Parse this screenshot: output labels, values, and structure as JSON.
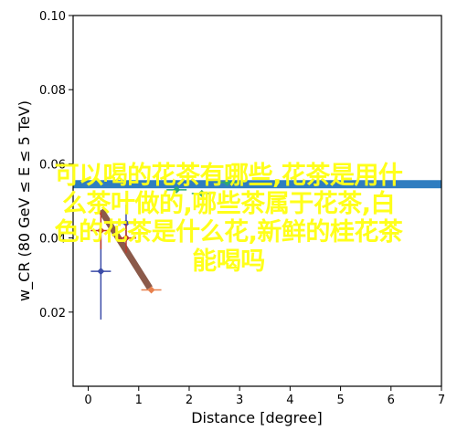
{
  "chart_data": {
    "type": "scatter",
    "title": "",
    "xlabel": "Distance [degree]",
    "ylabel": "w_CR (80 GeV ≤ E ≤ 5 TeV)",
    "xlim": [
      -0.3,
      7.0
    ],
    "ylim": [
      0.0,
      0.1
    ],
    "xticks": [
      0,
      1,
      2,
      3,
      4,
      5,
      6,
      7
    ],
    "yticks": [
      0.02,
      0.04,
      0.06,
      0.08,
      0.1
    ],
    "ytick_labels": [
      "0.02",
      "0.04",
      "0.06",
      "0.08",
      "0.10"
    ],
    "grid": false,
    "series": [
      {
        "marker": "plus",
        "color": "#3b4ca8",
        "points": [
          {
            "x": 0.25,
            "y": 0.031,
            "err": 0.013
          }
        ]
      },
      {
        "marker": "plus",
        "color": "#c0392b",
        "points": [
          {
            "x": 0.25,
            "y": 0.042,
            "err": 0.005
          }
        ]
      },
      {
        "marker": "plus",
        "color": "#3b4ca8",
        "points": [
          {
            "x": 0.75,
            "y": 0.044,
            "err": 0.005
          }
        ]
      },
      {
        "marker": "plus",
        "color": "#c0392b",
        "points": [
          {
            "x": 0.75,
            "y": 0.04,
            "err": 0.004
          }
        ]
      },
      {
        "marker": "plus",
        "color": "#e8804d",
        "points": [
          {
            "x": 1.25,
            "y": 0.026,
            "err": 0.0
          }
        ]
      },
      {
        "marker": "plus",
        "color": "#2aa876",
        "points": [
          {
            "x": 1.75,
            "y": 0.053,
            "err": 0.0
          }
        ]
      },
      {
        "marker": "plus",
        "color": "#2aa876",
        "points": [
          {
            "x": 2.25,
            "y": 0.052,
            "err": 0.0
          }
        ]
      },
      {
        "marker": "plus",
        "color": "#2aa876",
        "points": [
          {
            "x": 2.75,
            "y": 0.055,
            "err": 0.0
          }
        ]
      }
    ],
    "bands": [
      {
        "color": "#2f7dc0",
        "x0": -0.3,
        "x1": 7.0,
        "y": 0.0545,
        "thickness": 0.0022
      }
    ],
    "segments": [
      {
        "color": "#8b5a4a",
        "x0": 0.25,
        "y0": 0.0475,
        "x1": 1.22,
        "y1": 0.0265
      }
    ]
  },
  "overlay": {
    "color": "#ffff1a",
    "lines": [
      "可以喝的花茶有哪些,花茶是用什",
      "么茶叶做的,哪些茶属于花茶,白",
      "色的花茶是什么花,新鲜的桂花茶",
      "能喝吗"
    ]
  }
}
